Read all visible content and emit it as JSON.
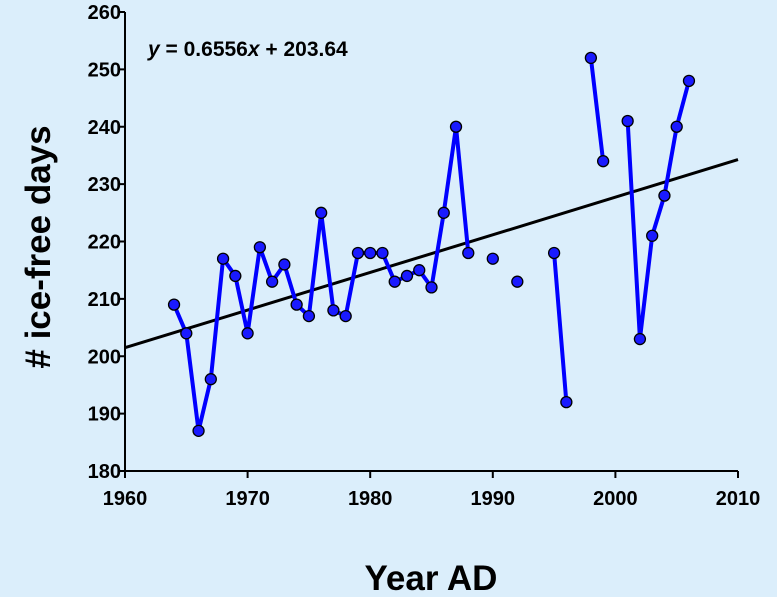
{
  "chart_data": {
    "type": "line",
    "xlabel": "Year AD",
    "ylabel": "# ice-free days",
    "xlim": [
      1960,
      2010
    ],
    "ylim": [
      180,
      260
    ],
    "xticks": [
      1960,
      1970,
      1980,
      1990,
      2000,
      2010
    ],
    "yticks": [
      180,
      190,
      200,
      210,
      220,
      230,
      240,
      250,
      260
    ],
    "grid": false,
    "annotation": {
      "prefix": "y",
      "rest": " = 0.6556",
      "var": "x",
      "tail": " + 203.64"
    },
    "trendline": {
      "slope": 0.6556,
      "intercept_at_1960": 201.5,
      "color": "#000000"
    },
    "series": [
      {
        "color": "#0000ff",
        "marker_color": "#1a1aff",
        "segments": [
          [
            [
              1964,
              209
            ],
            [
              1965,
              204
            ],
            [
              1966,
              187
            ],
            [
              1967,
              196
            ],
            [
              1968,
              217
            ],
            [
              1969,
              214
            ],
            [
              1970,
              204
            ],
            [
              1971,
              219
            ],
            [
              1972,
              213
            ],
            [
              1973,
              216
            ],
            [
              1974,
              209
            ],
            [
              1975,
              207
            ],
            [
              1976,
              225
            ],
            [
              1977,
              208
            ],
            [
              1978,
              207
            ],
            [
              1979,
              218
            ],
            [
              1980,
              218
            ],
            [
              1981,
              218
            ],
            [
              1982,
              213
            ],
            [
              1983,
              214
            ],
            [
              1984,
              215
            ],
            [
              1985,
              212
            ],
            [
              1986,
              225
            ],
            [
              1987,
              240
            ],
            [
              1988,
              218
            ]
          ],
          [
            [
              1990,
              217
            ]
          ],
          [
            [
              1992,
              213
            ]
          ],
          [
            [
              1995,
              218
            ],
            [
              1996,
              192
            ]
          ],
          [
            [
              1998,
              252
            ],
            [
              1999,
              234
            ]
          ],
          [
            [
              2001,
              241
            ],
            [
              2002,
              203
            ],
            [
              2003,
              221
            ],
            [
              2004,
              228
            ],
            [
              2005,
              240
            ],
            [
              2006,
              248
            ]
          ]
        ]
      }
    ]
  }
}
